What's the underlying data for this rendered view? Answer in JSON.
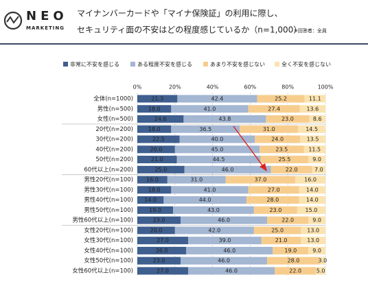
{
  "logo": {
    "name": "NEO",
    "sub": "MARKETING"
  },
  "chart_data": {
    "type": "stacked-bar-horizontal",
    "title": [
      "マイナンバーカードや「マイナ保険証」の利用に際し、",
      "セキュリティ面の不安はどの程度感じているか（n=1,000）"
    ],
    "note": "※回答者：全員",
    "categories": [
      "全体(n=1000)",
      "男性(n=500)",
      "女性(n=500)",
      "20代(n=200)",
      "30代(n=200)",
      "40代(n=200)",
      "50代(n=200)",
      "60代以上(n=200)",
      "男性20代(n=100)",
      "男性30代(n=100)",
      "男性40代(n=100)",
      "男性50代(n=100)",
      "男性60代以上(n=100)",
      "女性20代(n=100)",
      "女性30代(n=100)",
      "女性40代(n=100)",
      "女性50代(n=100)",
      "女性60代以上(n=100)"
    ],
    "xlim": [
      0,
      100
    ],
    "xticks": [
      {
        "value": 0,
        "label": "0%"
      },
      {
        "value": 20,
        "label": "20%"
      },
      {
        "value": 40,
        "label": "40%"
      },
      {
        "value": 60,
        "label": "60%"
      },
      {
        "value": 80,
        "label": "80%"
      },
      {
        "value": 100,
        "label": "100%"
      }
    ],
    "series": [
      {
        "name": "非常に不安を感じる",
        "color": "#3f5f8f",
        "values": [
          21.3,
          18.0,
          24.6,
          18.0,
          22.5,
          20.0,
          21.0,
          25.0,
          16.0,
          18.0,
          14.0,
          19.0,
          23.0,
          20.0,
          27.0,
          26.0,
          23.0,
          27.0
        ],
        "value_labels": [
          "21.3",
          "18.0",
          "24.6",
          "18.0",
          "22.5",
          "20.0",
          "21.0",
          "25.0",
          "16.0",
          "18.0",
          "14.0",
          "19.0",
          "23.0",
          "20.0",
          "27.0",
          "26.0",
          "23.0",
          "27.0"
        ]
      },
      {
        "name": "ある程度不安を感じる",
        "color": "#a3b6d2",
        "values": [
          42.4,
          41.0,
          43.8,
          36.5,
          40.0,
          45.0,
          44.5,
          46.0,
          31.0,
          41.0,
          44.0,
          43.0,
          46.0,
          42.0,
          39.0,
          46.0,
          46.0,
          46.0
        ],
        "value_labels": [
          "42.4",
          "41.0",
          "43.8",
          "36.5",
          "40.0",
          "45.0",
          "44.5",
          "46.0",
          "31.0",
          "41.0",
          "44.0",
          "43.0",
          "46.0",
          "42.0",
          "39.0",
          "46.0",
          "46.0",
          "46.0"
        ]
      },
      {
        "name": "あまり不安を感じない",
        "color": "#f7cd8e",
        "values": [
          25.2,
          27.4,
          23.0,
          31.0,
          24.0,
          23.5,
          25.5,
          22.0,
          37.0,
          27.0,
          28.0,
          23.0,
          22.0,
          25.0,
          21.0,
          19.0,
          28.0,
          22.0
        ],
        "value_labels": [
          "25.2",
          "27.4",
          "23.0",
          "31.0",
          "24.0",
          "23.5",
          "25.5",
          "22.0",
          "37.0",
          "27.0",
          "28.0",
          "23.0",
          "22.0",
          "25.0",
          "21.0",
          "19.0",
          "28.0",
          "22.0"
        ]
      },
      {
        "name": "全く不安を感じない",
        "color": "#fbe3b0",
        "values": [
          11.1,
          13.6,
          8.6,
          14.5,
          13.5,
          11.5,
          9.0,
          7.0,
          16.0,
          14.0,
          14.0,
          15.0,
          9.0,
          13.0,
          13.0,
          9.0,
          3.0,
          5.0
        ],
        "value_labels": [
          "11.1",
          "13.6",
          "8.6",
          "14.5",
          "13.5",
          "11.5",
          "9.0",
          "7.0",
          "16.0",
          "14.0",
          "14.0",
          "15.0",
          "9.0",
          "13.0",
          "13.0",
          "9.0",
          "3.0",
          "5.0"
        ]
      }
    ]
  }
}
